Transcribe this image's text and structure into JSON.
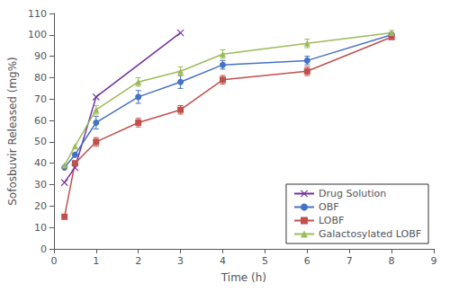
{
  "chart_data": {
    "type": "line",
    "xlabel": "Time (h)",
    "ylabel": "Sofosbuvir Released (mg%)",
    "series": [
      {
        "name": "Drug Solution",
        "color": "#7030A0",
        "marker": "x",
        "line_style": "solid",
        "x": [
          0.25,
          0.5,
          1,
          3
        ],
        "values": [
          31,
          38,
          71,
          101
        ],
        "yerr": [
          null,
          null,
          null,
          null
        ]
      },
      {
        "name": "OBF",
        "color": "#4472C4",
        "marker": "circle",
        "line_style": "solid",
        "x": [
          0.25,
          0.5,
          1,
          2,
          3,
          4,
          6,
          8
        ],
        "values": [
          38,
          44,
          59,
          71,
          78,
          86,
          88,
          100
        ],
        "yerr": [
          null,
          null,
          3,
          3,
          3,
          2,
          2,
          1
        ]
      },
      {
        "name": "LOBF",
        "color": "#C0504D",
        "marker": "square",
        "line_style": "solid",
        "x": [
          0.25,
          0.5,
          1,
          2,
          3,
          4,
          6,
          8
        ],
        "values": [
          15,
          40,
          50,
          59,
          65,
          79,
          83,
          99
        ],
        "yerr": [
          null,
          null,
          2,
          2,
          2,
          2,
          2,
          1
        ]
      },
      {
        "name": "Galactosylated LOBF",
        "color": "#9BBB59",
        "marker": "triangle",
        "line_style": "solid",
        "x": [
          0.25,
          0.5,
          1,
          2,
          3,
          4,
          6,
          8
        ],
        "values": [
          39,
          48,
          65,
          78,
          83,
          91,
          96,
          101
        ],
        "yerr": [
          null,
          null,
          2,
          2,
          2,
          2,
          2,
          1
        ]
      }
    ],
    "xlim": [
      0,
      9
    ],
    "ylim": [
      0,
      110
    ],
    "xticks": [
      0,
      1,
      2,
      3,
      4,
      5,
      6,
      7,
      8,
      9
    ],
    "yticks": [
      0,
      10,
      20,
      30,
      40,
      50,
      60,
      70,
      80,
      90,
      100,
      110
    ],
    "grid": false,
    "legend": "lower right"
  }
}
